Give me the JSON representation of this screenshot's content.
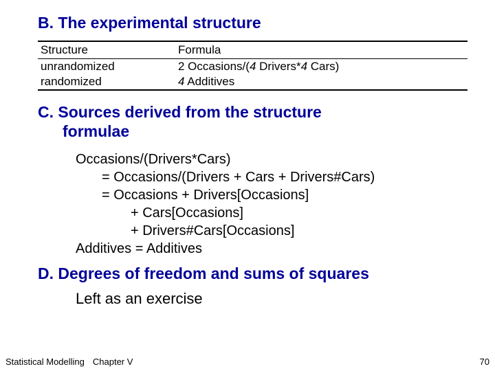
{
  "section_b": {
    "label": "B.",
    "title": "The experimental structure"
  },
  "table": {
    "header": {
      "col1": "Structure",
      "col2": "Formula"
    },
    "rows": [
      {
        "structure": "unrandomized",
        "formula_prefix": "2 Occasions/(",
        "formula_italic1": "4",
        "formula_mid1": " Drivers*",
        "formula_italic2": "4",
        "formula_suffix": " Cars)"
      },
      {
        "structure": "randomized",
        "formula_prefix": "",
        "formula_italic1": "4",
        "formula_mid1": " Additives",
        "formula_italic2": "",
        "formula_suffix": ""
      }
    ]
  },
  "section_c": {
    "label": "C.",
    "title_line1": "Sources derived from the structure",
    "title_line2": "formulae"
  },
  "formulae": {
    "line1": "Occasions/(Drivers*Cars)",
    "line2": "= Occasions/(Drivers + Cars + Drivers#Cars)",
    "line3": "= Occasions + Drivers[Occasions]",
    "line4": "+ Cars[Occasions]",
    "line5": "+ Drivers#Cars[Occasions]",
    "line6": "Additives = Additives"
  },
  "section_d": {
    "label": "D.",
    "title": "Degrees of freedom and sums of squares"
  },
  "exercise": "Left as an exercise",
  "footer": {
    "course": "Statistical Modelling",
    "chapter": "Chapter V",
    "page": "70"
  },
  "colors": {
    "heading": "#000099",
    "text": "#000000",
    "background": "#ffffff"
  }
}
